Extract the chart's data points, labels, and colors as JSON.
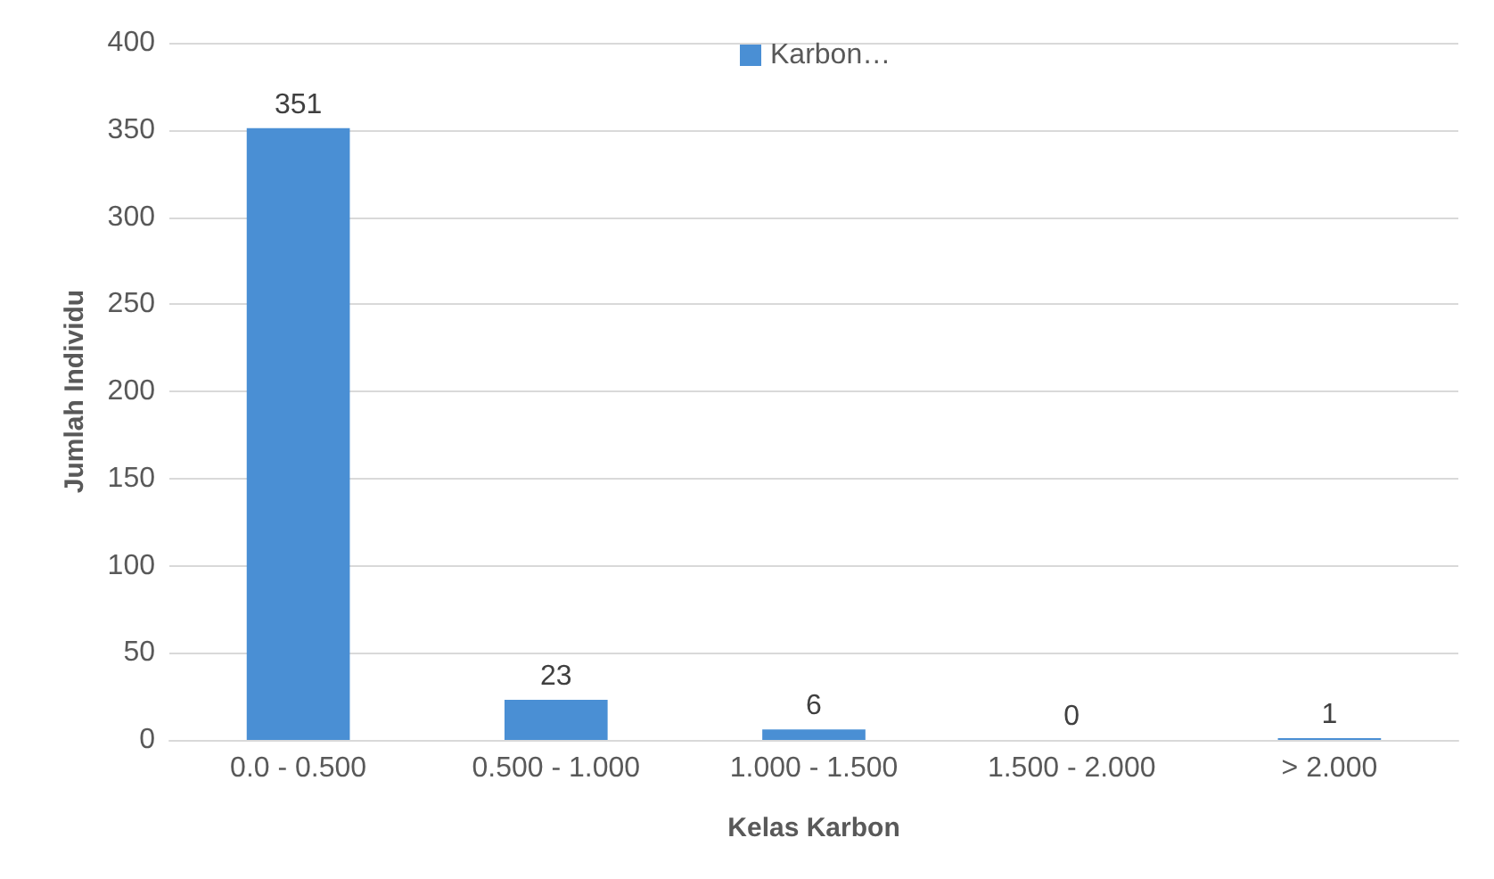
{
  "chart_data": {
    "type": "bar",
    "xlabel": "Kelas Karbon",
    "ylabel": "Jumlah Individu",
    "categories": [
      "0.0 - 0.500",
      "0.500 - 1.000",
      "1.000 - 1.500",
      "1.500 - 2.000",
      "> 2.000"
    ],
    "series": [
      {
        "name": "Karbon…",
        "color": "#4a8fd4",
        "values": [
          351,
          23,
          6,
          0,
          1
        ]
      }
    ],
    "ylim": [
      0,
      400
    ],
    "yticks": [
      0,
      50,
      100,
      150,
      200,
      250,
      300,
      350,
      400
    ],
    "grid": "y",
    "legend": "top",
    "data_labels": true
  }
}
